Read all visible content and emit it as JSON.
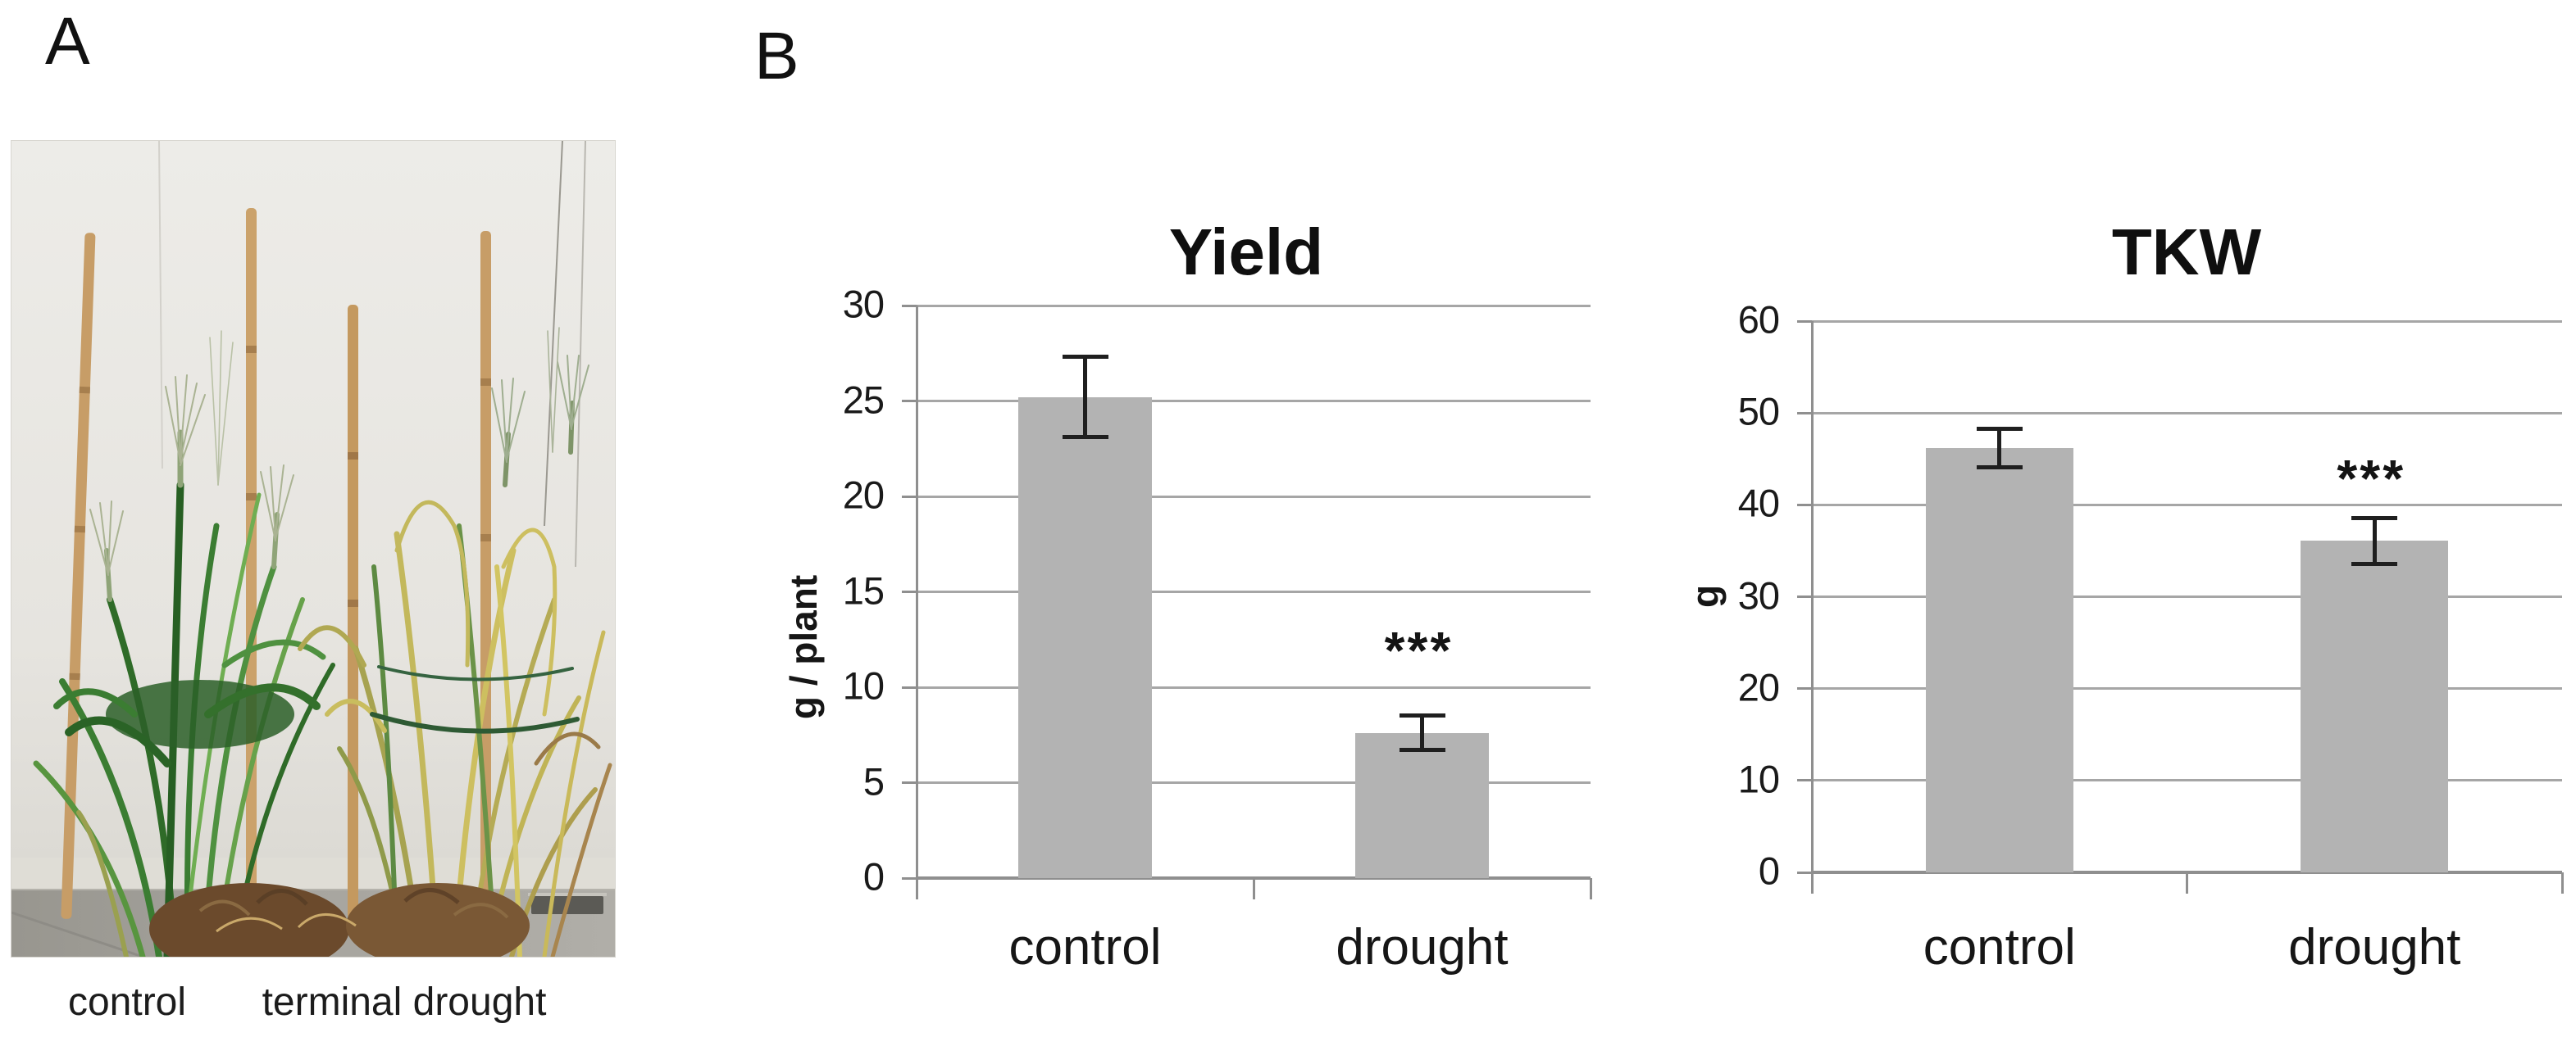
{
  "panels": {
    "a_label": "A",
    "b_label": "B"
  },
  "photo": {
    "caption_left": "control",
    "caption_right": "terminal drought",
    "palette": {
      "wall": "#e9e7e2",
      "baseboard": "#dfddd6",
      "floor": "#a3a19b",
      "drain": "#5b5a55",
      "stake": "#c79d67",
      "soil_dark": "#6b4a2c",
      "soil_light": "#7a5835",
      "foliage_green": "#3b7d32",
      "foliage_dark_green": "#2c5f28",
      "foliage_yellow": "#c9bd5e",
      "foliage_brown": "#a8854e",
      "awn": "#aab393"
    }
  },
  "chart_data": [
    {
      "type": "bar",
      "title": "Yield",
      "ylabel": "g / plant",
      "xlabel": "",
      "categories": [
        "control",
        "drought"
      ],
      "values": [
        25.2,
        7.6
      ],
      "errors": [
        2.1,
        0.9
      ],
      "significance": [
        "",
        "***"
      ],
      "ylim": [
        0,
        30
      ],
      "yticks": [
        0,
        5,
        10,
        15,
        20,
        25,
        30
      ],
      "grid": true,
      "legend_position": "none"
    },
    {
      "type": "bar",
      "title": "TKW",
      "ylabel": "g",
      "xlabel": "",
      "categories": [
        "control",
        "drought"
      ],
      "values": [
        46.2,
        36.1
      ],
      "errors": [
        2.1,
        2.5
      ],
      "significance": [
        "",
        "***"
      ],
      "ylim": [
        0,
        60
      ],
      "yticks": [
        0,
        10,
        20,
        30,
        40,
        50,
        60
      ],
      "grid": true,
      "legend_position": "none"
    }
  ],
  "colors": {
    "bar": "#b3b3b3",
    "gridline": "#a6a6a6",
    "axis": "#8f8f8f",
    "error_bar": "#1f1f1f",
    "text": "#1a1a1a"
  }
}
